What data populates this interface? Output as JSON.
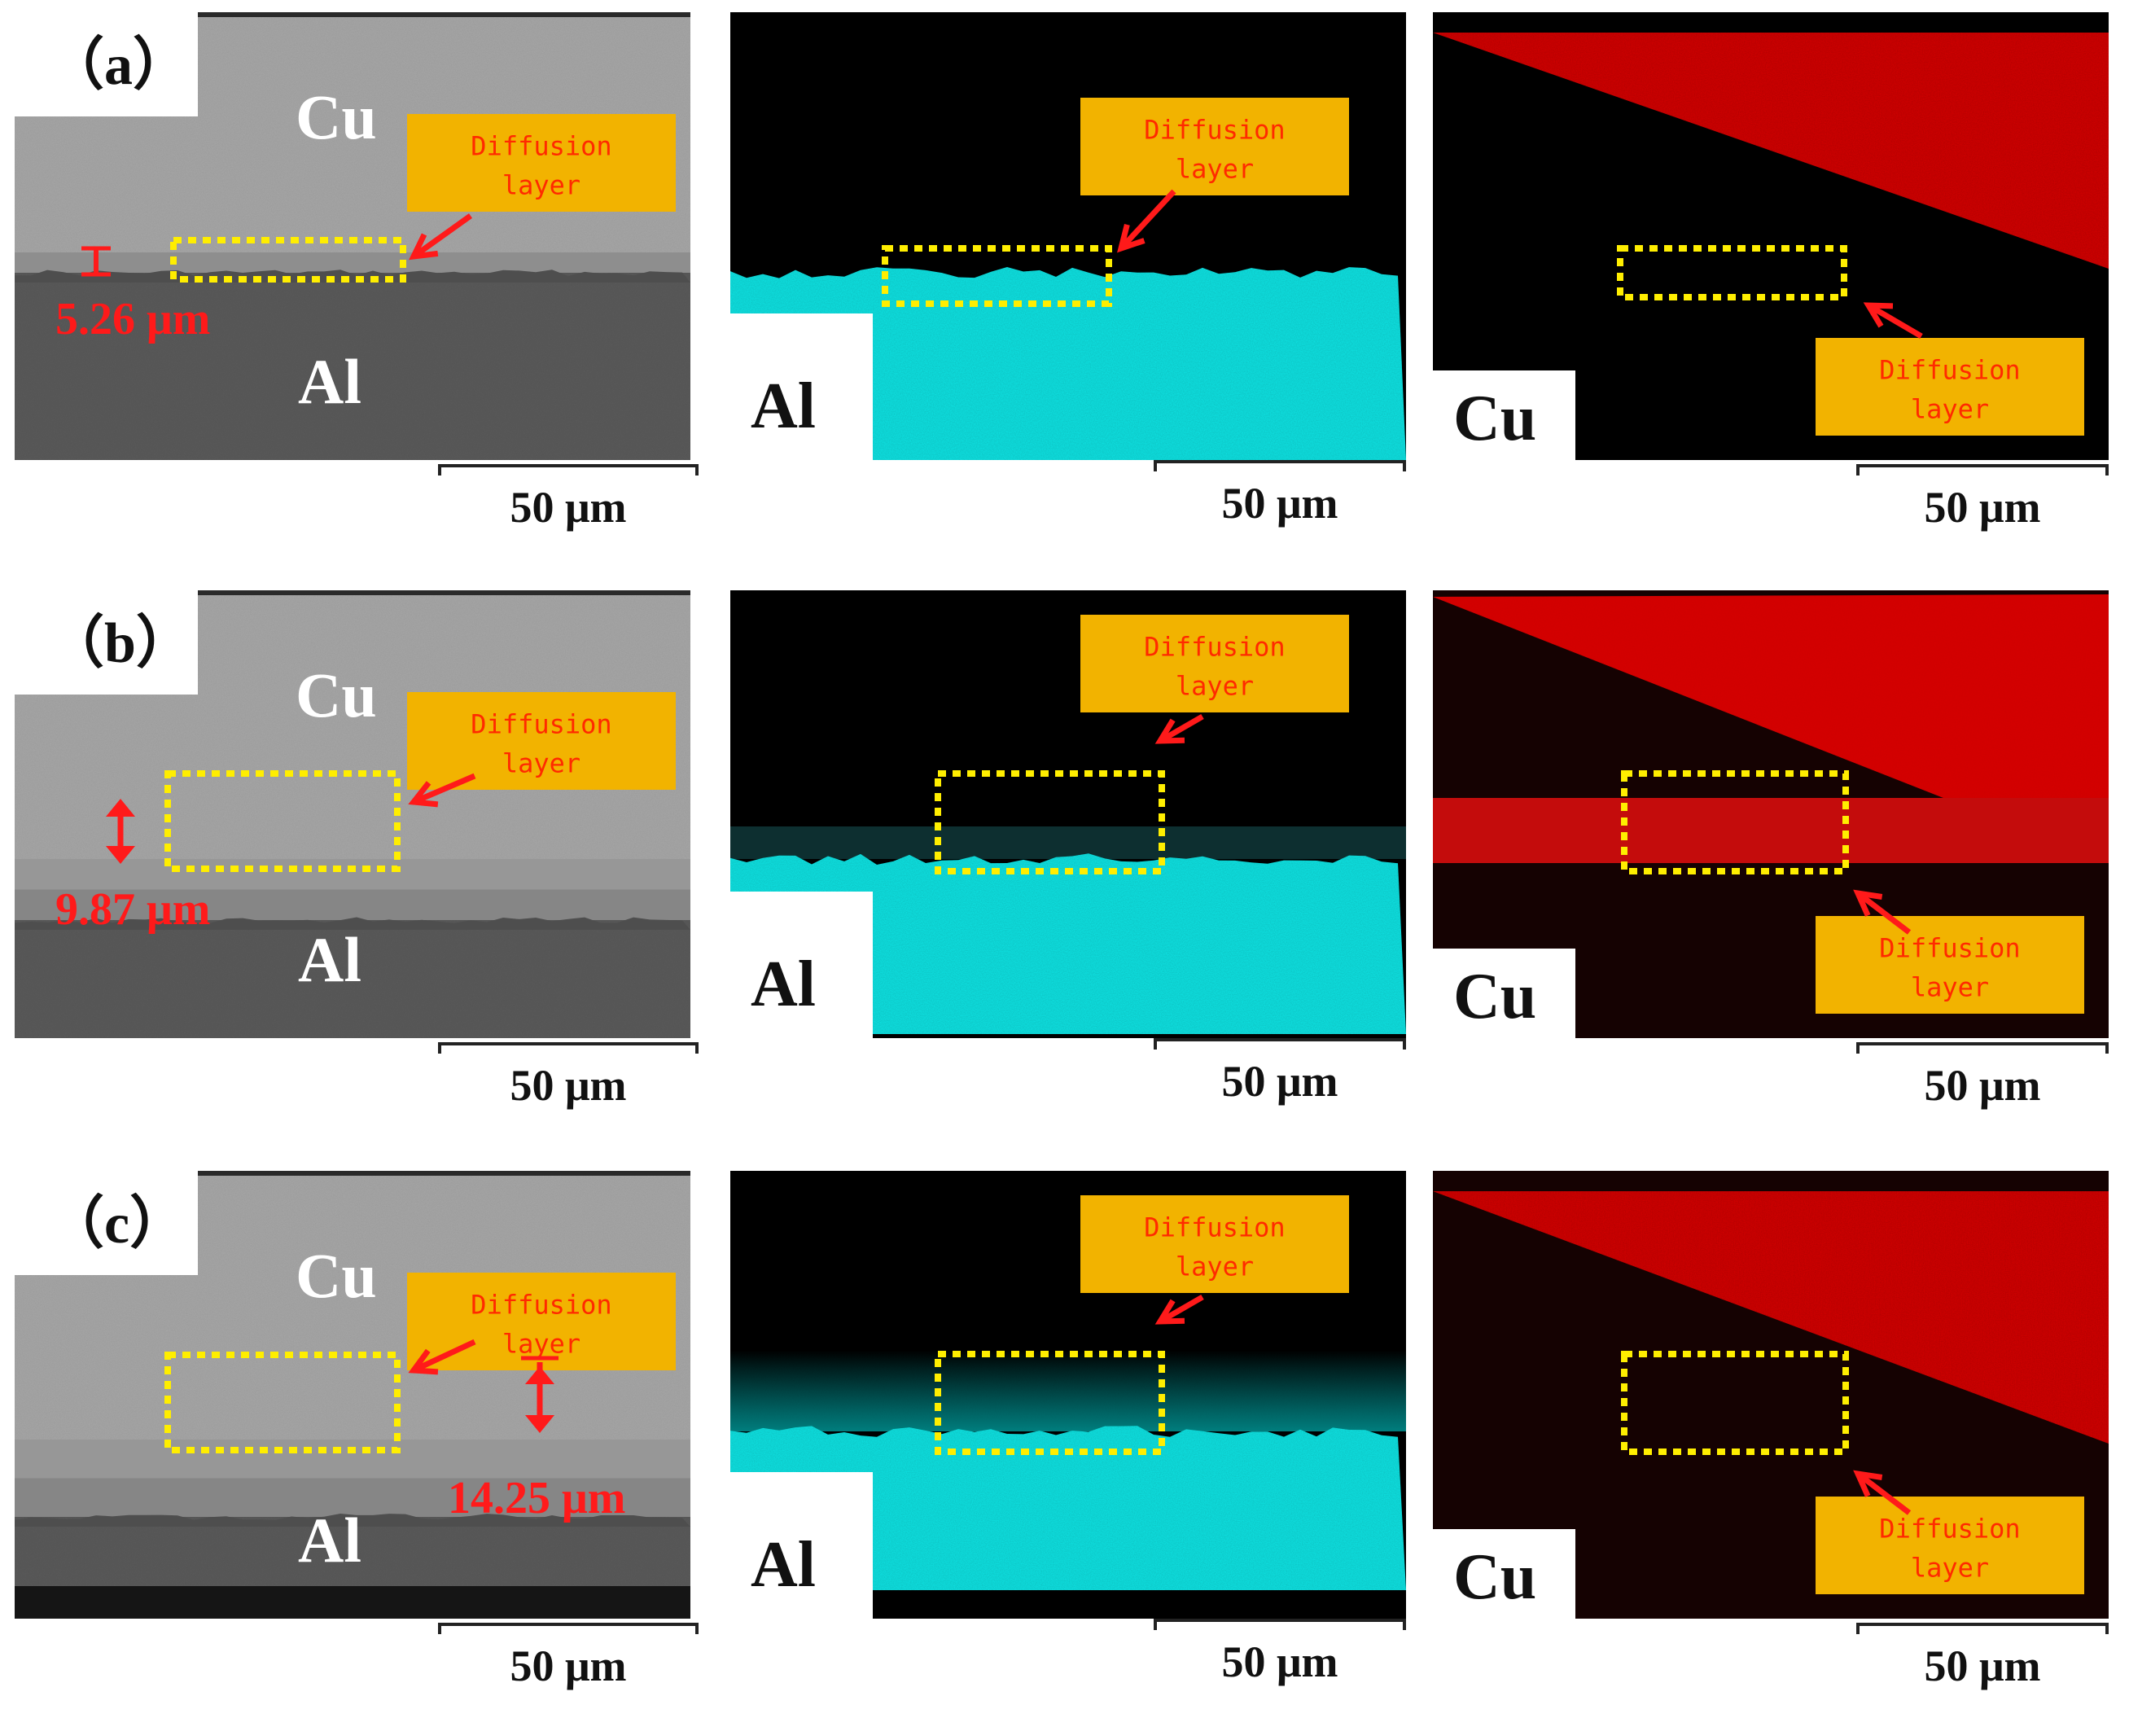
{
  "diffusion_label_line1": "Diffusion",
  "diffusion_label_line2": "layer",
  "scale_text": "50 μm",
  "rows": [
    {
      "panel_label": "（a）",
      "sem_top_label": "Cu",
      "sem_bottom_label": "Al",
      "thickness": "5.26 μm",
      "map_al_label": "Al",
      "map_cu_label": "Cu"
    },
    {
      "panel_label": "（b）",
      "sem_top_label": "Cu",
      "sem_bottom_label": "Al",
      "thickness": "9.87 μm",
      "map_al_label": "Al",
      "map_cu_label": "Cu"
    },
    {
      "panel_label": "（c）",
      "sem_top_label": "Cu",
      "sem_bottom_label": "Al",
      "thickness": "14.25 μm",
      "map_al_label": "Al",
      "map_cu_label": "Cu"
    }
  ],
  "colors": {
    "annotation_red": "#ff1a1a",
    "box_yellow": "#ffee00",
    "label_box_gold": "#f2b300",
    "label_text": "#ff2a00",
    "al_map": "#19e6e6",
    "cu_map": "#d81010",
    "sem_cu": "#a8a8a8",
    "sem_al": "#5c5c5c"
  }
}
